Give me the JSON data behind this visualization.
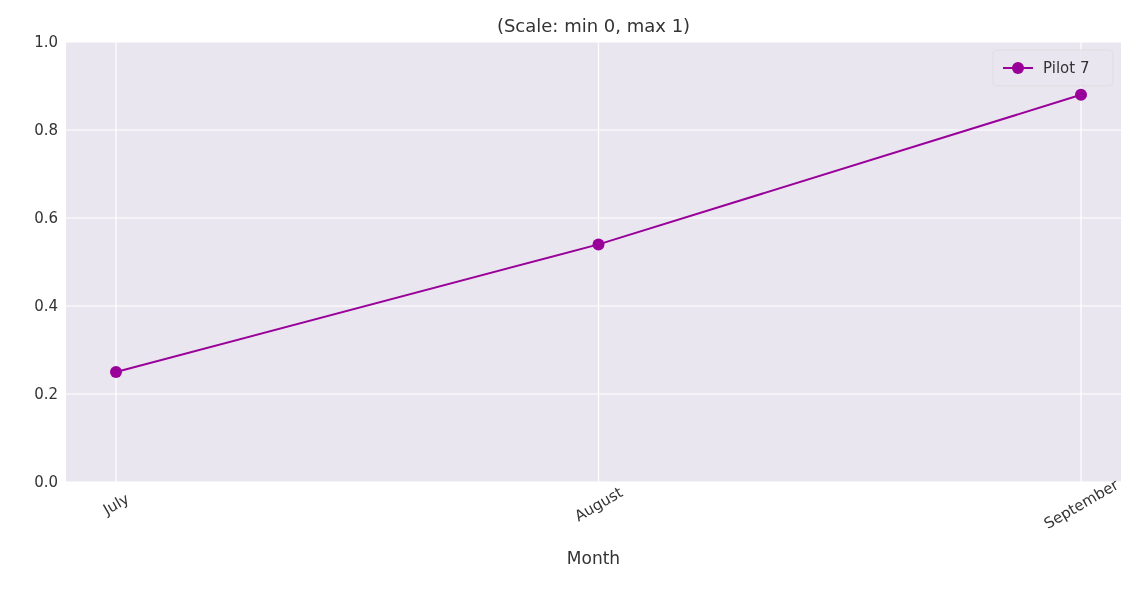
{
  "chart_data": {
    "type": "line",
    "title": "(Scale: min 0, max 1)",
    "xlabel": "Month",
    "categories": [
      "July",
      "August",
      "September"
    ],
    "series": [
      {
        "name": "Pilot 7",
        "color": "#990099",
        "values": [
          0.25,
          0.54,
          0.88
        ]
      }
    ],
    "ylim": [
      0,
      1
    ],
    "yticks": [
      {
        "value": 0,
        "label": "0.0"
      },
      {
        "value": 0.2,
        "label": "0.2"
      },
      {
        "value": 0.4,
        "label": "0.4"
      },
      {
        "value": 0.6,
        "label": "0.6"
      },
      {
        "value": 0.8,
        "label": "0.8"
      },
      {
        "value": 1,
        "label": "1.0"
      }
    ],
    "grid": true,
    "legend": "top right",
    "marker": "circle",
    "line_style": "solid"
  }
}
